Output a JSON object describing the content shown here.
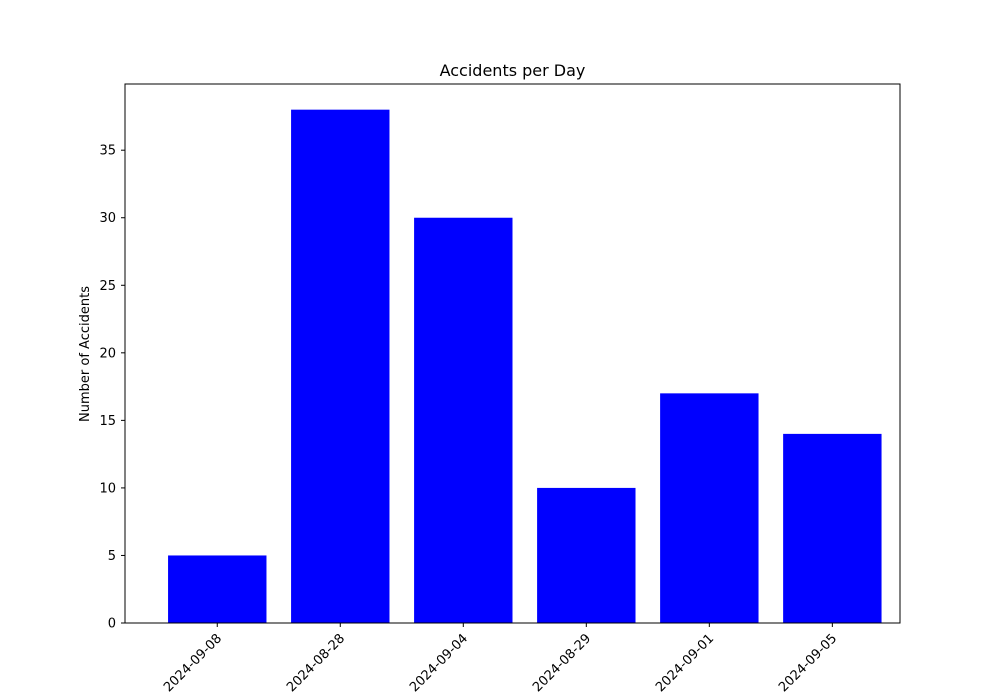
{
  "chart_data": {
    "type": "bar",
    "title": "Accidents per Day",
    "xlabel": "",
    "ylabel": "Number of Accidents",
    "categories": [
      "2024-09-08",
      "2024-08-28",
      "2024-09-04",
      "2024-08-29",
      "2024-09-01",
      "2024-09-05"
    ],
    "values": [
      5,
      38,
      30,
      10,
      17,
      14
    ],
    "ylim": [
      0,
      39.9
    ],
    "yticks": [
      0,
      5,
      10,
      15,
      20,
      25,
      30,
      35
    ],
    "bar_color": "#0000ff",
    "grid": false,
    "legend": "none"
  }
}
